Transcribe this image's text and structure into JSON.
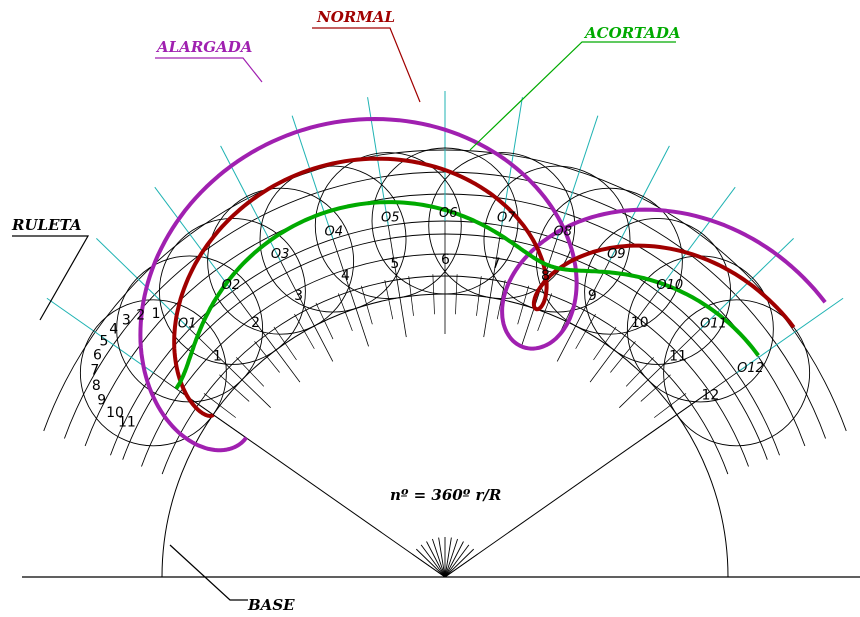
{
  "labels": {
    "normal": "NORMAL",
    "acortada": "ACORTADA",
    "alargada": "ALARGADA",
    "ruleta": "RULETA",
    "base": "BASE",
    "formula": "nº = 360º r/R"
  },
  "colors": {
    "normal": "#a00000",
    "acortada": "#00aa00",
    "alargada": "#a020b0",
    "construction": "#1fb3b3",
    "ink": "#000000"
  },
  "base_numbers": [
    "1",
    "2",
    "3",
    "4",
    "5",
    "6",
    "7",
    "8",
    "9",
    "10",
    "11",
    "12"
  ],
  "center_labels": [
    "O1",
    "O2",
    "O3",
    "O4",
    "O5",
    "O6",
    "O7",
    "O8",
    "O9",
    "O10",
    "O11",
    "O12"
  ],
  "rolling_circle_numbers": [
    "1",
    "2",
    "3",
    "4",
    "5",
    "6",
    "7",
    "8",
    "9",
    "10",
    "11"
  ]
}
